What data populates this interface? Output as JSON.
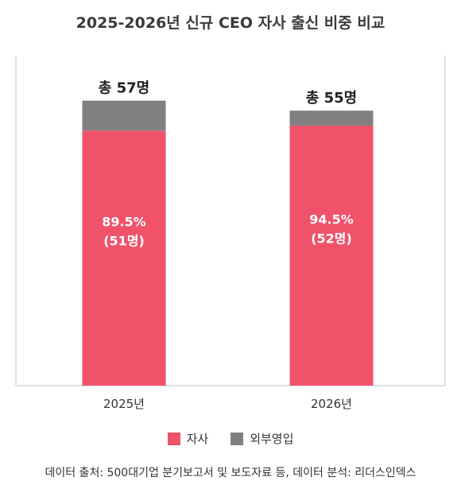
{
  "chart_data": {
    "type": "bar",
    "stacked": true,
    "title": "2025-2026년 신규 CEO 자사 출신 비중 비교",
    "categories": [
      "2025년",
      "2026년"
    ],
    "series": [
      {
        "name": "자사",
        "values": [
          51,
          52
        ],
        "color": "#f0526a"
      },
      {
        "name": "외부영입",
        "values": [
          6,
          3
        ],
        "color": "#808080"
      }
    ],
    "totals": [
      "총 57명",
      "총 55명"
    ],
    "inner_labels": [
      {
        "pct": "89.5%",
        "count": "(51명)"
      },
      {
        "pct": "94.5%",
        "count": "(52명)"
      }
    ],
    "ylim": [
      0,
      66
    ],
    "grid": false,
    "legend": "bottom"
  },
  "footer": {
    "source": "데이터 출처: 500대기업 분기보고서 및 보도자료 등, 데이터 분석: 리더스인덱스"
  }
}
